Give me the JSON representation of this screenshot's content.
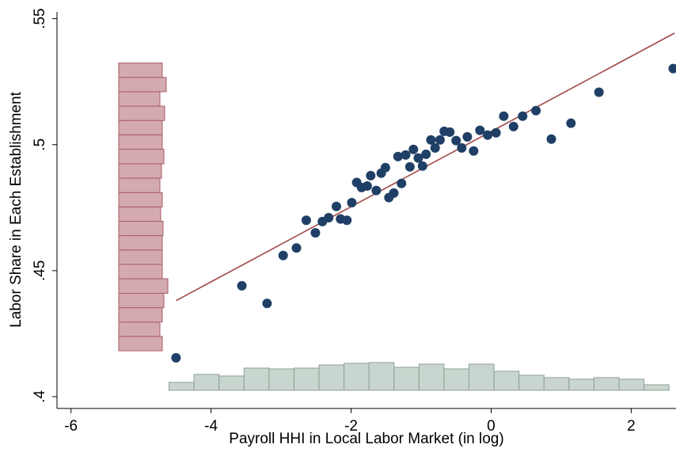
{
  "chart_data": {
    "type": "scatter",
    "x_label": "Payroll HHI in Local Labor Market (in log)",
    "y_label": "Labor Share in Each Establishment",
    "xlim": [
      -6.2,
      2.64
    ],
    "ylim": [
      0.3953,
      0.5527
    ],
    "xticks": [
      -6,
      -4,
      -2,
      0,
      2
    ],
    "yticks": [
      {
        "value": 0.4,
        "label": ".4"
      },
      {
        "value": 0.45,
        "label": ".45"
      },
      {
        "value": 0.5,
        "label": ".5"
      },
      {
        "value": 0.55,
        "label": ".55"
      }
    ],
    "points": {
      "color": "#1f3f66",
      "x": [
        -4.5,
        -3.56,
        -3.2,
        -2.97,
        -2.78,
        -2.64,
        -2.51,
        -2.41,
        -2.32,
        -2.21,
        -2.15,
        -2.06,
        -1.99,
        -1.92,
        -1.85,
        -1.77,
        -1.72,
        -1.64,
        -1.57,
        -1.51,
        -1.46,
        -1.39,
        -1.33,
        -1.28,
        -1.22,
        -1.16,
        -1.11,
        -1.04,
        -0.98,
        -0.93,
        -0.86,
        -0.8,
        -0.73,
        -0.67,
        -0.59,
        -0.5,
        -0.42,
        -0.34,
        -0.25,
        -0.16,
        -0.05,
        0.07,
        0.18,
        0.32,
        0.45,
        0.64,
        0.86,
        1.14,
        1.54,
        2.6
      ],
      "y": [
        0.4154,
        0.444,
        0.437,
        0.456,
        0.459,
        0.47,
        0.465,
        0.4695,
        0.471,
        0.4755,
        0.4705,
        0.47,
        0.477,
        0.485,
        0.483,
        0.4836,
        0.4877,
        0.4818,
        0.4887,
        0.4909,
        0.479,
        0.4808,
        0.4953,
        0.4846,
        0.4959,
        0.4912,
        0.4981,
        0.4947,
        0.4915,
        0.4962,
        0.5019,
        0.4987,
        0.5019,
        0.5053,
        0.505,
        0.5016,
        0.4987,
        0.5031,
        0.4975,
        0.5057,
        0.5038,
        0.5047,
        0.5113,
        0.5072,
        0.5113,
        0.5135,
        0.5022,
        0.5085,
        0.5208,
        0.5302
      ]
    },
    "fit_line": {
      "color": "#a04848",
      "x": [
        -4.5,
        2.62
      ],
      "y": [
        0.4381,
        0.5443
      ]
    },
    "x_histogram": {
      "color": "#c9d6cf",
      "edge_color": "#8e9e96",
      "bins": [
        -4.6,
        -4.243,
        -3.886,
        -3.529,
        -3.172,
        -2.815,
        -2.458,
        -2.101,
        -1.744,
        -1.387,
        -1.03,
        -0.673,
        -0.316,
        0.041,
        0.398,
        0.755,
        1.112,
        1.469,
        1.826,
        2.183,
        2.54
      ],
      "counts": [
        10,
        20,
        18,
        28,
        27,
        28,
        32,
        34,
        35,
        29,
        33,
        27,
        33,
        24,
        19,
        16,
        14,
        16,
        14,
        7
      ]
    },
    "y_histogram": {
      "color": "#d3aab0",
      "edge_color": "#a85c68",
      "bins": [
        0.4182,
        0.4239,
        0.4296,
        0.4353,
        0.441,
        0.4468,
        0.4525,
        0.4582,
        0.4639,
        0.4696,
        0.4753,
        0.481,
        0.4867,
        0.4924,
        0.4982,
        0.5039,
        0.5096,
        0.5153,
        0.521,
        0.5267,
        0.5324
      ],
      "counts": [
        55,
        52,
        55,
        57,
        62,
        55,
        55,
        55,
        56,
        53,
        55,
        52,
        54,
        57,
        55,
        55,
        58,
        52,
        60,
        55
      ]
    }
  }
}
